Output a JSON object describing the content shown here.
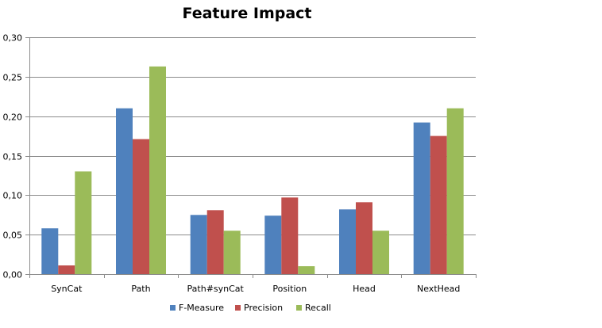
{
  "chart_data": {
    "type": "bar",
    "title": "Feature Impact",
    "xlabel": "",
    "ylabel": "",
    "categories": [
      "SynCat",
      "Path",
      "Path#synCat",
      "Position",
      "Head",
      "NextHead"
    ],
    "series": [
      {
        "name": "F-Measure",
        "color": "#4f81bd",
        "values": [
          0.058,
          0.21,
          0.075,
          0.074,
          0.082,
          0.192
        ]
      },
      {
        "name": "Precision",
        "color": "#c0504d",
        "values": [
          0.011,
          0.171,
          0.081,
          0.097,
          0.091,
          0.175
        ]
      },
      {
        "name": "Recall",
        "color": "#9bbb59",
        "values": [
          0.13,
          0.263,
          0.055,
          0.01,
          0.055,
          0.21
        ]
      }
    ],
    "ylim": [
      0,
      0.3
    ],
    "yticks": [
      "0,00",
      "0,05",
      "0,10",
      "0,15",
      "0,20",
      "0,25",
      "0,30"
    ],
    "grid": true,
    "legend_position": "bottom"
  }
}
